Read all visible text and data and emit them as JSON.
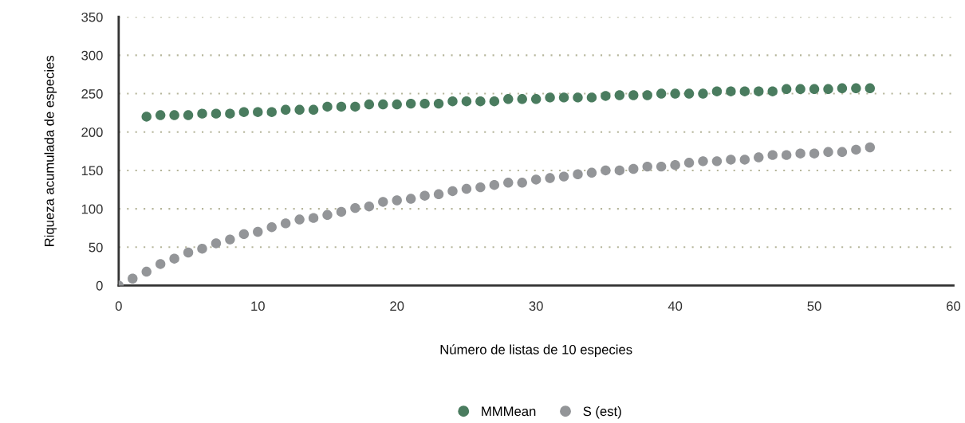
{
  "chart_data": {
    "type": "scatter",
    "xlabel": "Número de listas de 10 especies",
    "ylabel": "Riqueza acumulada de especies",
    "xlim": [
      0,
      60
    ],
    "xticks": [
      0,
      10,
      20,
      30,
      40,
      50,
      60
    ],
    "ylim": [
      0,
      350
    ],
    "yticks": [
      0,
      50,
      100,
      150,
      200,
      250,
      300,
      350
    ],
    "grid": "y",
    "legend": "bottom",
    "marker": "circle",
    "series": [
      {
        "name": "MMMean",
        "color": "#4a7c5f",
        "x": [
          2,
          3,
          4,
          5,
          6,
          7,
          8,
          9,
          10,
          11,
          12,
          13,
          14,
          15,
          16,
          17,
          18,
          19,
          20,
          21,
          22,
          23,
          24,
          25,
          26,
          27,
          28,
          29,
          30,
          31,
          32,
          33,
          34,
          35,
          36,
          37,
          38,
          39,
          40,
          41,
          42,
          43,
          44,
          45,
          46,
          47,
          48,
          49,
          50,
          51,
          52,
          53,
          54
        ],
        "values": [
          220,
          222,
          222,
          222,
          224,
          224,
          224,
          226,
          226,
          226,
          229,
          229,
          229,
          233,
          233,
          233,
          236,
          236,
          236,
          237,
          237,
          237,
          240,
          240,
          240,
          240,
          243,
          243,
          243,
          245,
          245,
          245,
          245,
          247,
          248,
          248,
          248,
          250,
          250,
          250,
          250,
          253,
          253,
          253,
          253,
          253,
          256,
          256,
          256,
          256,
          257,
          257,
          257
        ]
      },
      {
        "name": "S (est)",
        "color": "#939598",
        "x": [
          0,
          1,
          2,
          3,
          4,
          5,
          6,
          7,
          8,
          9,
          10,
          11,
          12,
          13,
          14,
          15,
          16,
          17,
          18,
          19,
          20,
          21,
          22,
          23,
          24,
          25,
          26,
          27,
          28,
          29,
          30,
          31,
          32,
          33,
          34,
          35,
          36,
          37,
          38,
          39,
          40,
          41,
          42,
          43,
          44,
          45,
          46,
          47,
          48,
          49,
          50,
          51,
          52,
          53,
          54
        ],
        "values": [
          0,
          9,
          18,
          28,
          35,
          43,
          48,
          55,
          60,
          67,
          70,
          76,
          81,
          86,
          88,
          92,
          96,
          101,
          103,
          109,
          111,
          113,
          117,
          119,
          123,
          126,
          128,
          131,
          134,
          134,
          138,
          140,
          142,
          145,
          147,
          150,
          150,
          152,
          155,
          155,
          157,
          160,
          162,
          162,
          164,
          164,
          167,
          170,
          170,
          172,
          172,
          174,
          174,
          177,
          180
        ]
      }
    ]
  }
}
